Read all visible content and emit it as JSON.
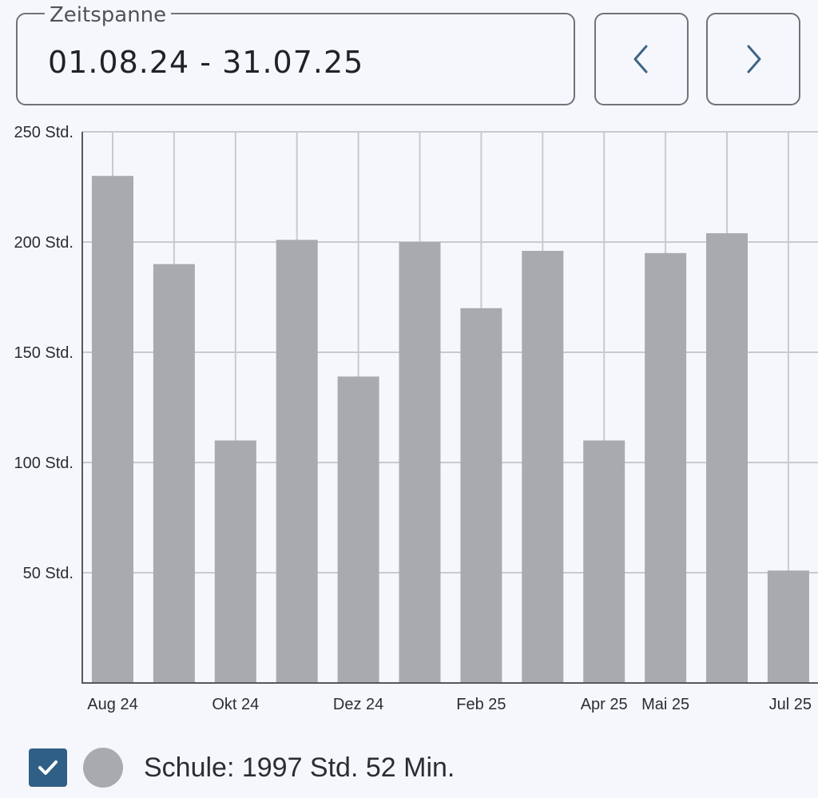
{
  "zeitspanne": {
    "label": "Zeitspanne",
    "value": "01.08.24 - 31.07.25"
  },
  "nav": {
    "prev_icon": "chevron-left-icon",
    "next_icon": "chevron-right-icon",
    "icon_color": "#3d6686"
  },
  "chart_data": {
    "type": "bar",
    "categories": [
      "Aug 24",
      "Sep 24",
      "Okt 24",
      "Nov 24",
      "Dez 24",
      "Jan 25",
      "Feb 25",
      "Mär 25",
      "Apr 25",
      "Mai 25",
      "Jun 25",
      "Jul 25"
    ],
    "x_tick_labels": [
      "Aug 24",
      "",
      "Okt 24",
      "",
      "Dez 24",
      "",
      "Feb 25",
      "",
      "Apr 25",
      "Mai 25",
      "",
      "Jul 25"
    ],
    "values": [
      230,
      190,
      110,
      201,
      139,
      200,
      170,
      196,
      110,
      195,
      204,
      51
    ],
    "y_ticks": [
      50,
      100,
      150,
      200,
      250
    ],
    "y_tick_labels": [
      "50 Std.",
      "100 Std.",
      "150 Std.",
      "200 Std.",
      "250 Std."
    ],
    "ylim": [
      0,
      250
    ],
    "grid": true,
    "bar_color": "#a9aaaf",
    "grid_color": "#c9cacf",
    "axis_color": "#55585d"
  },
  "legend": {
    "checked": true,
    "checkbox_color": "#2f5f86",
    "swatch_color": "#a9aaaf",
    "text": "Schule: 1997 Std. 52 Min."
  }
}
